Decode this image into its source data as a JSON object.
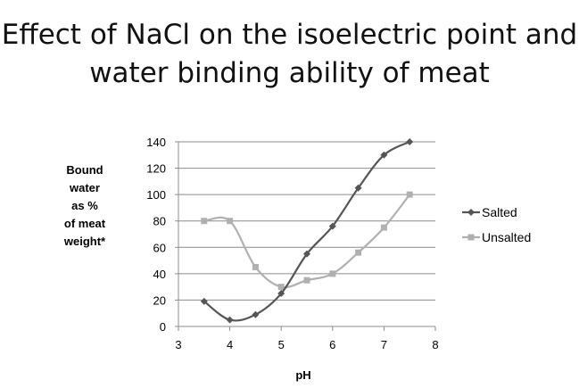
{
  "title": {
    "line1": "Effect of NaCl on the isoelectric point and",
    "line2": "water binding ability of meat"
  },
  "chart_data": {
    "type": "line",
    "ylabel": [
      "Bound",
      "water",
      "as %",
      "of meat",
      "weight*"
    ],
    "xlabel": "pH",
    "xlim": [
      3,
      8
    ],
    "ylim": [
      0,
      140
    ],
    "x_ticks": [
      "3",
      "4",
      "5",
      "6",
      "7",
      "8"
    ],
    "y_ticks": [
      "0",
      "20",
      "40",
      "60",
      "80",
      "100",
      "120",
      "140"
    ],
    "grid": "horizontal",
    "legend_position": "right",
    "series": [
      {
        "name": "Salted",
        "color": "#555555",
        "marker": "diamond",
        "x": [
          3.5,
          4,
          4.5,
          5,
          5.5,
          6,
          6.5,
          7,
          7.5
        ],
        "values": [
          19,
          5,
          9,
          25,
          55,
          76,
          105,
          130,
          140
        ]
      },
      {
        "name": "Unsalted",
        "color": "#b0b0b0",
        "marker": "square",
        "x": [
          3.5,
          4,
          4.5,
          5,
          5.5,
          6,
          6.5,
          7,
          7.5
        ],
        "values": [
          80,
          80,
          45,
          30,
          35,
          40,
          56,
          75,
          100
        ]
      }
    ]
  }
}
